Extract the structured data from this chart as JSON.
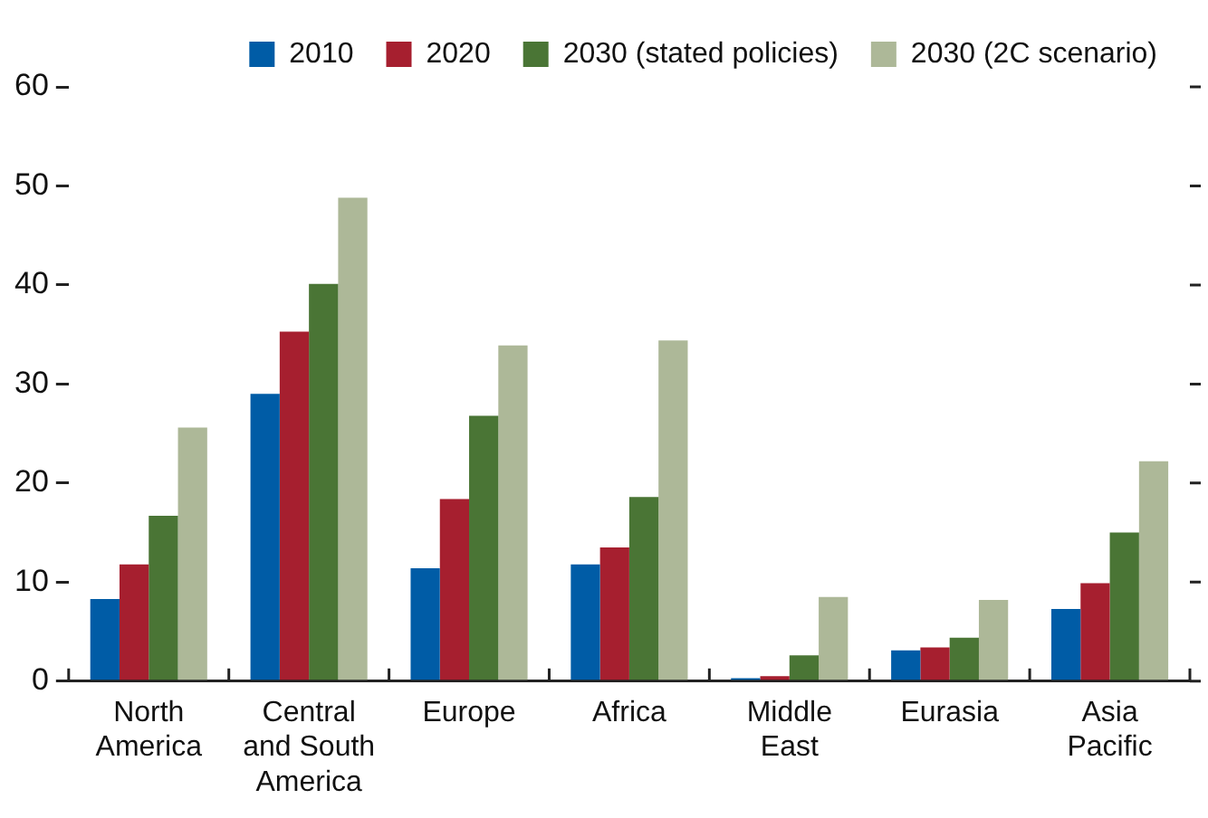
{
  "chart_data": {
    "type": "bar",
    "categories": [
      "North America",
      "Central and South America",
      "Europe",
      "Africa",
      "Middle East",
      "Eurasia",
      "Asia Pacific"
    ],
    "series": [
      {
        "name": "2010",
        "color": "#005ca6",
        "values": [
          8.3,
          29.0,
          11.4,
          11.8,
          0.3,
          3.1,
          7.3
        ]
      },
      {
        "name": "2020",
        "color": "#a61f2f",
        "values": [
          11.8,
          35.3,
          18.4,
          13.5,
          0.5,
          3.4,
          9.9
        ]
      },
      {
        "name": "2030 (stated policies)",
        "color": "#4a7535",
        "values": [
          16.7,
          40.1,
          26.8,
          18.6,
          2.6,
          4.4,
          15.0
        ]
      },
      {
        "name": "2030 (2C scenario)",
        "color": "#adb898",
        "values": [
          25.6,
          48.8,
          33.9,
          34.4,
          8.5,
          8.2,
          22.2
        ]
      }
    ],
    "ylim": [
      0,
      60
    ],
    "yticks": [
      0,
      10,
      20,
      30,
      40,
      50,
      60
    ],
    "grid": false,
    "legend": "top"
  }
}
